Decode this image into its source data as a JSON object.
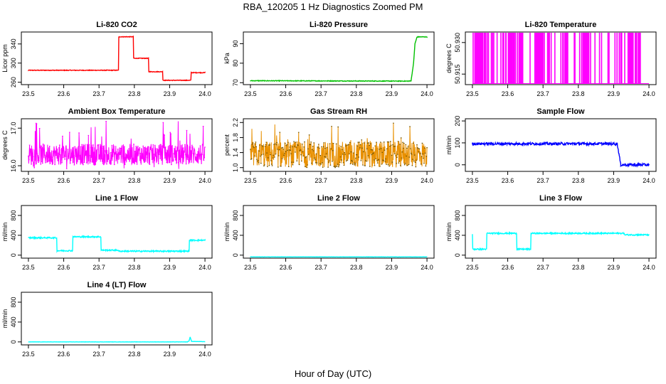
{
  "figure": {
    "title": "RBA_120205  1 Hz Diagnostics Zoomed PM",
    "xlabel": "Hour of Day (UTC)"
  },
  "chart_data": [
    {
      "type": "line",
      "title": "Li-820 CO2",
      "ylabel": "Licor ppm",
      "color": "#ff0000",
      "xlim": [
        23.48,
        24.02
      ],
      "ylim": [
        255,
        365
      ],
      "xticks": [
        "23.5",
        "23.6",
        "23.7",
        "23.8",
        "23.9",
        "24.0"
      ],
      "yticks": [
        "260",
        "300",
        "340"
      ],
      "x": [
        23.5,
        23.755,
        23.756,
        23.797,
        23.798,
        23.84,
        23.841,
        23.88,
        23.881,
        23.96,
        23.961,
        24.0
      ],
      "y": [
        285,
        285,
        355,
        355,
        310,
        310,
        282,
        282,
        264,
        264,
        280,
        280
      ]
    },
    {
      "type": "line",
      "title": "Li-820 Pressure",
      "ylabel": "kPa",
      "color": "#00c000",
      "xlim": [
        23.48,
        24.02
      ],
      "ylim": [
        69,
        96
      ],
      "xticks": [
        "23.5",
        "23.6",
        "23.7",
        "23.8",
        "23.9",
        "24.0"
      ],
      "yticks": [
        "70",
        "80",
        "90"
      ],
      "x": [
        23.5,
        23.95,
        23.955,
        23.962,
        23.966,
        23.972,
        24.0
      ],
      "y": [
        71,
        70.8,
        71,
        80,
        90,
        93.5,
        93.5
      ]
    },
    {
      "type": "line",
      "title": "Li-820 Temperature",
      "ylabel": "degrees C",
      "color": "#ff00ff",
      "xlim": [
        23.48,
        24.02
      ],
      "ylim": [
        50.91,
        50.935
      ],
      "xticks": [
        "23.5",
        "23.6",
        "23.7",
        "23.8",
        "23.9",
        "24.0"
      ],
      "yticks": [
        "50.915",
        "50.930"
      ],
      "x": [
        23.5,
        24.0
      ],
      "y": [
        50.91,
        50.935
      ]
    },
    {
      "type": "line",
      "title": "Ambient Box Temperature",
      "ylabel": "degrees C",
      "color": "#ff00ff",
      "xlim": [
        23.48,
        24.02
      ],
      "ylim": [
        15.85,
        17.25
      ],
      "xticks": [
        "23.5",
        "23.6",
        "23.7",
        "23.8",
        "23.9",
        "24.0"
      ],
      "yticks": [
        "16.0",
        "17.0"
      ],
      "x": [
        23.5,
        24.0
      ],
      "y": [
        15.9,
        17.2
      ]
    },
    {
      "type": "line",
      "title": "Gas Stream RH",
      "ylabel": "percent",
      "color": "#e89000",
      "xlim": [
        23.48,
        24.02
      ],
      "ylim": [
        0.9,
        2.3
      ],
      "xticks": [
        "23.5",
        "23.6",
        "23.7",
        "23.8",
        "23.9",
        "24.0"
      ],
      "yticks": [
        "1.0",
        "1.4",
        "1.8",
        "2.2"
      ],
      "x": [
        23.5,
        24.0
      ],
      "y": [
        1.0,
        2.2
      ]
    },
    {
      "type": "line",
      "title": "Sample Flow",
      "ylabel": "ml/min",
      "color": "#0000ff",
      "xlim": [
        23.48,
        24.02
      ],
      "ylim": [
        -30,
        210
      ],
      "xticks": [
        "23.5",
        "23.6",
        "23.7",
        "23.8",
        "23.9",
        "24.0"
      ],
      "yticks": [
        "0",
        "100",
        "200"
      ],
      "x": [
        23.5,
        23.91,
        23.915,
        23.92,
        24.0
      ],
      "y": [
        96,
        96,
        50,
        0,
        0
      ]
    },
    {
      "type": "line",
      "title": "Line 1 Flow",
      "ylabel": "ml/min",
      "color": "#00ffff",
      "xlim": [
        23.48,
        24.02
      ],
      "ylim": [
        -60,
        1000
      ],
      "xticks": [
        "23.5",
        "23.6",
        "23.7",
        "23.8",
        "23.9",
        "24.0"
      ],
      "yticks": [
        "0",
        "400",
        "800"
      ],
      "x": [
        23.5,
        23.58,
        23.581,
        23.625,
        23.626,
        23.705,
        23.706,
        23.755,
        23.756,
        23.955,
        23.956,
        24.0
      ],
      "y": [
        350,
        350,
        90,
        90,
        370,
        370,
        100,
        100,
        80,
        80,
        300,
        300
      ]
    },
    {
      "type": "line",
      "title": "Line 2 Flow",
      "ylabel": "ml/min",
      "color": "#00ffff",
      "xlim": [
        23.48,
        24.02
      ],
      "ylim": [
        -60,
        1000
      ],
      "xticks": [
        "23.5",
        "23.6",
        "23.7",
        "23.8",
        "23.9",
        "24.0"
      ],
      "yticks": [
        "0",
        "400",
        "800"
      ],
      "x": [
        23.5,
        24.0
      ],
      "y": [
        -35,
        -35
      ]
    },
    {
      "type": "line",
      "title": "Line 3 Flow",
      "ylabel": "ml/min",
      "color": "#00ffff",
      "xlim": [
        23.48,
        24.02
      ],
      "ylim": [
        -60,
        1000
      ],
      "xticks": [
        "23.5",
        "23.6",
        "23.7",
        "23.8",
        "23.9",
        "24.0"
      ],
      "yticks": [
        "0",
        "400",
        "800"
      ],
      "x": [
        23.5,
        23.501,
        23.54,
        23.541,
        23.625,
        23.626,
        23.665,
        23.666,
        23.93,
        23.931,
        24.0
      ],
      "y": [
        420,
        120,
        120,
        440,
        440,
        120,
        120,
        440,
        440,
        410,
        410
      ]
    },
    {
      "type": "line",
      "title": "Line 4 (LT) Flow",
      "ylabel": "ml/min",
      "color": "#00ffff",
      "xlim": [
        23.48,
        24.02
      ],
      "ylim": [
        -60,
        1000
      ],
      "xticks": [
        "23.5",
        "23.6",
        "23.7",
        "23.8",
        "23.9",
        "24.0"
      ],
      "yticks": [
        "0",
        "400",
        "800"
      ],
      "x": [
        23.5,
        23.95,
        23.955,
        23.958,
        23.962,
        24.0
      ],
      "y": [
        0,
        0,
        20,
        100,
        10,
        5
      ]
    }
  ]
}
